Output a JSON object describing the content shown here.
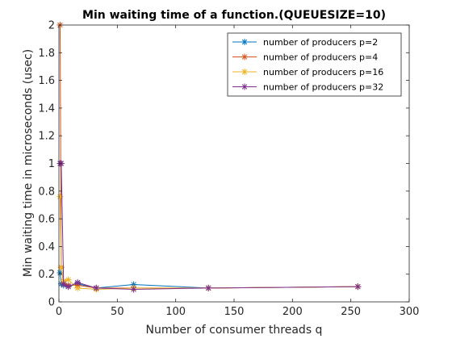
{
  "chart_data": {
    "type": "line",
    "title": "Min waiting time of a function.(QUEUESIZE=10)",
    "xlabel": "Number of consumer threads q",
    "ylabel": "Min waiting time in microseconds (usec)",
    "xlim": [
      0,
      300
    ],
    "ylim": [
      0,
      2
    ],
    "xticks": [
      0,
      50,
      100,
      150,
      200,
      250,
      300
    ],
    "yticks": [
      0,
      0.2,
      0.4,
      0.6,
      0.8,
      1,
      1.2,
      1.4,
      1.6,
      1.8,
      2
    ],
    "grid": false,
    "legend_position": "top-right",
    "marker": "asterisk",
    "series": [
      {
        "name": "number of producers p=2",
        "color": "#0072BD",
        "x": [
          1,
          2,
          4,
          8,
          16,
          32,
          64,
          128,
          256
        ],
        "y": [
          0.21,
          0.13,
          0.12,
          0.11,
          0.13,
          0.1,
          0.125,
          0.1,
          0.11
        ]
      },
      {
        "name": "number of producers p=4",
        "color": "#D95319",
        "x": [
          1,
          2,
          4,
          8,
          16,
          32,
          64,
          128,
          256
        ],
        "y": [
          2.0,
          0.25,
          0.13,
          0.12,
          0.12,
          0.1,
          0.1,
          0.1,
          0.11
        ]
      },
      {
        "name": "number of producers p=16",
        "color": "#EDB120",
        "x": [
          1,
          2,
          4,
          8,
          16,
          32,
          64,
          128,
          256
        ],
        "y": [
          0.76,
          0.25,
          0.15,
          0.16,
          0.1,
          0.09,
          0.1,
          0.1,
          0.11
        ]
      },
      {
        "name": "number of producers p=32",
        "color": "#7E2F8E",
        "x": [
          1,
          2,
          4,
          8,
          16,
          32,
          64,
          128,
          256
        ],
        "y": [
          1.0,
          1.0,
          0.13,
          0.11,
          0.14,
          0.1,
          0.09,
          0.1,
          0.11
        ]
      }
    ]
  }
}
